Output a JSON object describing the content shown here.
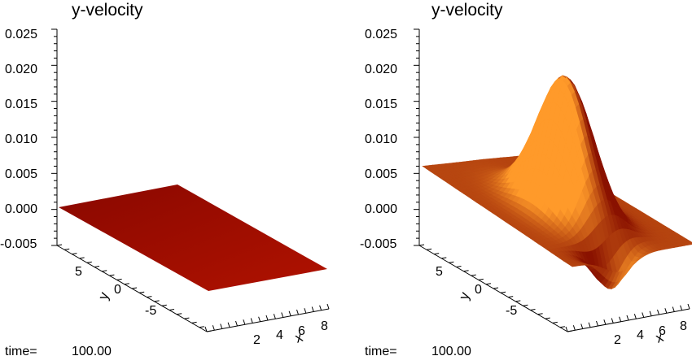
{
  "chart_data": [
    {
      "type": "surface",
      "title": "y-velocity",
      "zlim": [
        -0.005,
        0.025
      ],
      "z_ticks": [
        "0.025",
        "0.020",
        "0.015",
        "0.010",
        "0.005",
        "0.000",
        "-0.005"
      ],
      "x_label": "x",
      "x_ticks": [
        "2",
        "4",
        "6",
        "8"
      ],
      "y_label": "y",
      "y_ticks": [
        "5",
        "0",
        "-5"
      ],
      "surface": "flat plane at 0.000",
      "peak_value": 0.0,
      "colors": {
        "low": "#8a0800",
        "high": "#b01200"
      },
      "footer": {
        "label": "time=",
        "value": "100.00"
      }
    },
    {
      "type": "surface",
      "title": "y-velocity",
      "zlim": [
        -0.005,
        0.025
      ],
      "z_ticks": [
        "0.025",
        "0.020",
        "0.015",
        "0.010",
        "0.005",
        "0.000",
        "-0.005"
      ],
      "x_label": "x",
      "x_ticks": [
        "2",
        "4",
        "6",
        "8"
      ],
      "y_label": "y",
      "y_ticks": [
        "5",
        "0",
        "-5"
      ],
      "surface": "single peak near x=5, y=0",
      "peak_value": 0.019,
      "colors": {
        "low": "#8a1200",
        "high": "#ff9a2a"
      },
      "footer": {
        "label": "time=",
        "value": "100.00"
      }
    }
  ]
}
